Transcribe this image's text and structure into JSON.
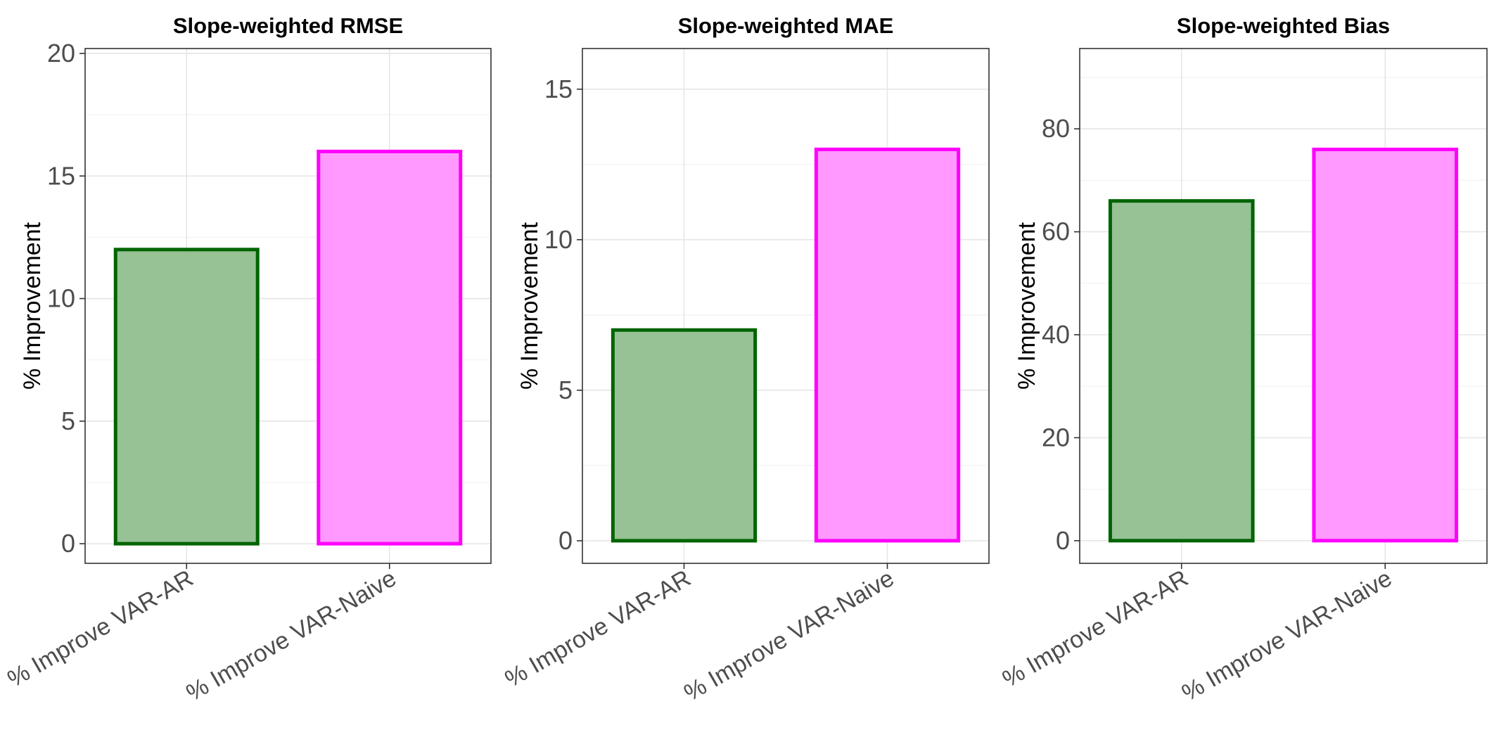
{
  "chart_data": [
    {
      "type": "bar",
      "title": "Slope-weighted RMSE",
      "xlabel": "",
      "ylabel": "% Improvement",
      "categories": [
        "% Improve VAR-AR",
        "% Improve VAR-Naive"
      ],
      "values": [
        12,
        16
      ],
      "ylim": [
        -0.8,
        20.2
      ],
      "yticks": [
        0,
        5,
        10,
        15,
        20
      ],
      "grid": true,
      "colors": {
        "fill": [
          "#96c296",
          "#ff99ff"
        ],
        "stroke": [
          "#006400",
          "#ff00ff"
        ]
      }
    },
    {
      "type": "bar",
      "title": "Slope-weighted MAE",
      "xlabel": "",
      "ylabel": "% Improvement",
      "categories": [
        "% Improve VAR-AR",
        "% Improve VAR-Naive"
      ],
      "values": [
        7,
        13
      ],
      "ylim": [
        -0.75,
        16.35
      ],
      "yticks": [
        0,
        5,
        10,
        15
      ],
      "grid": true,
      "colors": {
        "fill": [
          "#96c296",
          "#ff99ff"
        ],
        "stroke": [
          "#006400",
          "#ff00ff"
        ]
      }
    },
    {
      "type": "bar",
      "title": "Slope-weighted Bias",
      "xlabel": "",
      "ylabel": "% Improvement",
      "categories": [
        "% Improve VAR-AR",
        "% Improve VAR-Naive"
      ],
      "values": [
        66,
        76
      ],
      "ylim": [
        -4.4,
        95.6
      ],
      "yticks": [
        0,
        20,
        40,
        60,
        80
      ],
      "grid": true,
      "colors": {
        "fill": [
          "#96c296",
          "#ff99ff"
        ],
        "stroke": [
          "#006400",
          "#ff00ff"
        ]
      }
    }
  ]
}
